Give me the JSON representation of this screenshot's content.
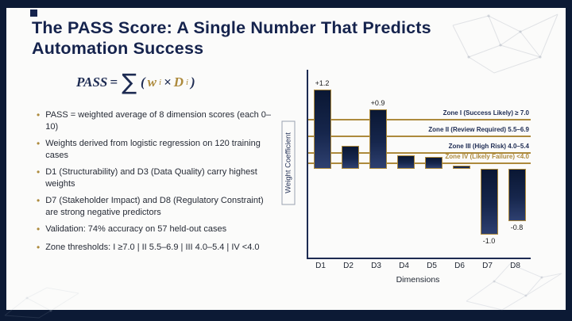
{
  "slide": {
    "title": "The PASS Score: A Single Number That Predicts Automation Success"
  },
  "formula": {
    "lhs": "PASS",
    "equals": "=",
    "sigma": "∑",
    "open_paren": "(",
    "w_term": "w",
    "w_sub": "i",
    "times": "×",
    "d_term": "D",
    "d_sub": "i",
    "close_paren": ")"
  },
  "bullets": [
    "PASS = weighted average of 8 dimension scores (each 0–10)",
    "Weights derived from logistic regression on 120 training cases",
    "D1 (Structurability) and D3 (Data Quality) carry highest weights",
    "D7 (Stakeholder Impact) and D8 (Regulatory Constraint) are strong negative predictors",
    "Validation: 74% accuracy on 57 held-out cases",
    "Zone thresholds: I ≥7.0 | II 5.5–6.9 | III 4.0–5.4 | IV <4.0"
  ],
  "chart_data": {
    "type": "bar",
    "title": "",
    "xlabel": "Dimensions",
    "ylabel": "Weight Coefficient",
    "categories": [
      "D1",
      "D2",
      "D3",
      "D4",
      "D5",
      "D6",
      "D7",
      "D8"
    ],
    "values": [
      1.2,
      0.35,
      0.9,
      0.2,
      0.18,
      0.05,
      -1.0,
      -0.8
    ],
    "bar_labels": [
      "+1.2",
      "",
      "+0.9",
      "",
      "",
      "",
      "-1.0",
      "-0.8"
    ],
    "ylim": [
      -1.35,
      1.5
    ],
    "grid": false,
    "zone_lines": [
      {
        "label": "Zone I (Success Likely) ≥ 7.0",
        "y": 0.76,
        "label_color": "#1d2b52"
      },
      {
        "label": "Zone II (Review Required) 5.5–6.9",
        "y": 0.5,
        "label_color": "#1d2b52"
      },
      {
        "label": "Zone III (High Risk) 4.0–5.4",
        "y": 0.25,
        "label_color": "#1d2b52"
      },
      {
        "label": "Zone IV (Likely Failure) <4.0",
        "y": 0.09,
        "label_color": "#ad8a3c"
      }
    ],
    "colors": {
      "bar_fill": "#13224a",
      "bar_border": "#ad8a3c",
      "zone_line": "#ad8a3c",
      "axis": "#1d2b52"
    }
  },
  "theme": {
    "gold": "#ad8a3c",
    "navy": "#15234d",
    "frame_bg": "#0c1a35",
    "panel_bg": "#fbfbfa"
  }
}
